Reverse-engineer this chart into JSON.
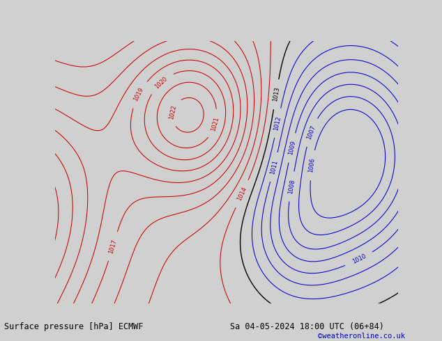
{
  "title_left": "Surface pressure [hPa] ECMWF",
  "title_right": "Sa 04-05-2024 18:00 UTC (06+84)",
  "copyright": "©weatheronline.co.uk",
  "bg_color": "#d0d0d0",
  "land_color": "#c8e6b4",
  "sea_color": "#d0d0d0",
  "fig_width": 6.34,
  "fig_height": 4.9,
  "dpi": 100,
  "bottom_bar_color": "#ffffff",
  "title_fontsize": 8.5,
  "copyright_color": "#0000cc",
  "red_contour_color": "#cc0000",
  "blue_contour_color": "#0000cc",
  "black_contour_color": "#000000",
  "contour_linewidth": 0.75,
  "lon_min": -15,
  "lon_max": 35,
  "lat_min": 50,
  "lat_max": 75
}
